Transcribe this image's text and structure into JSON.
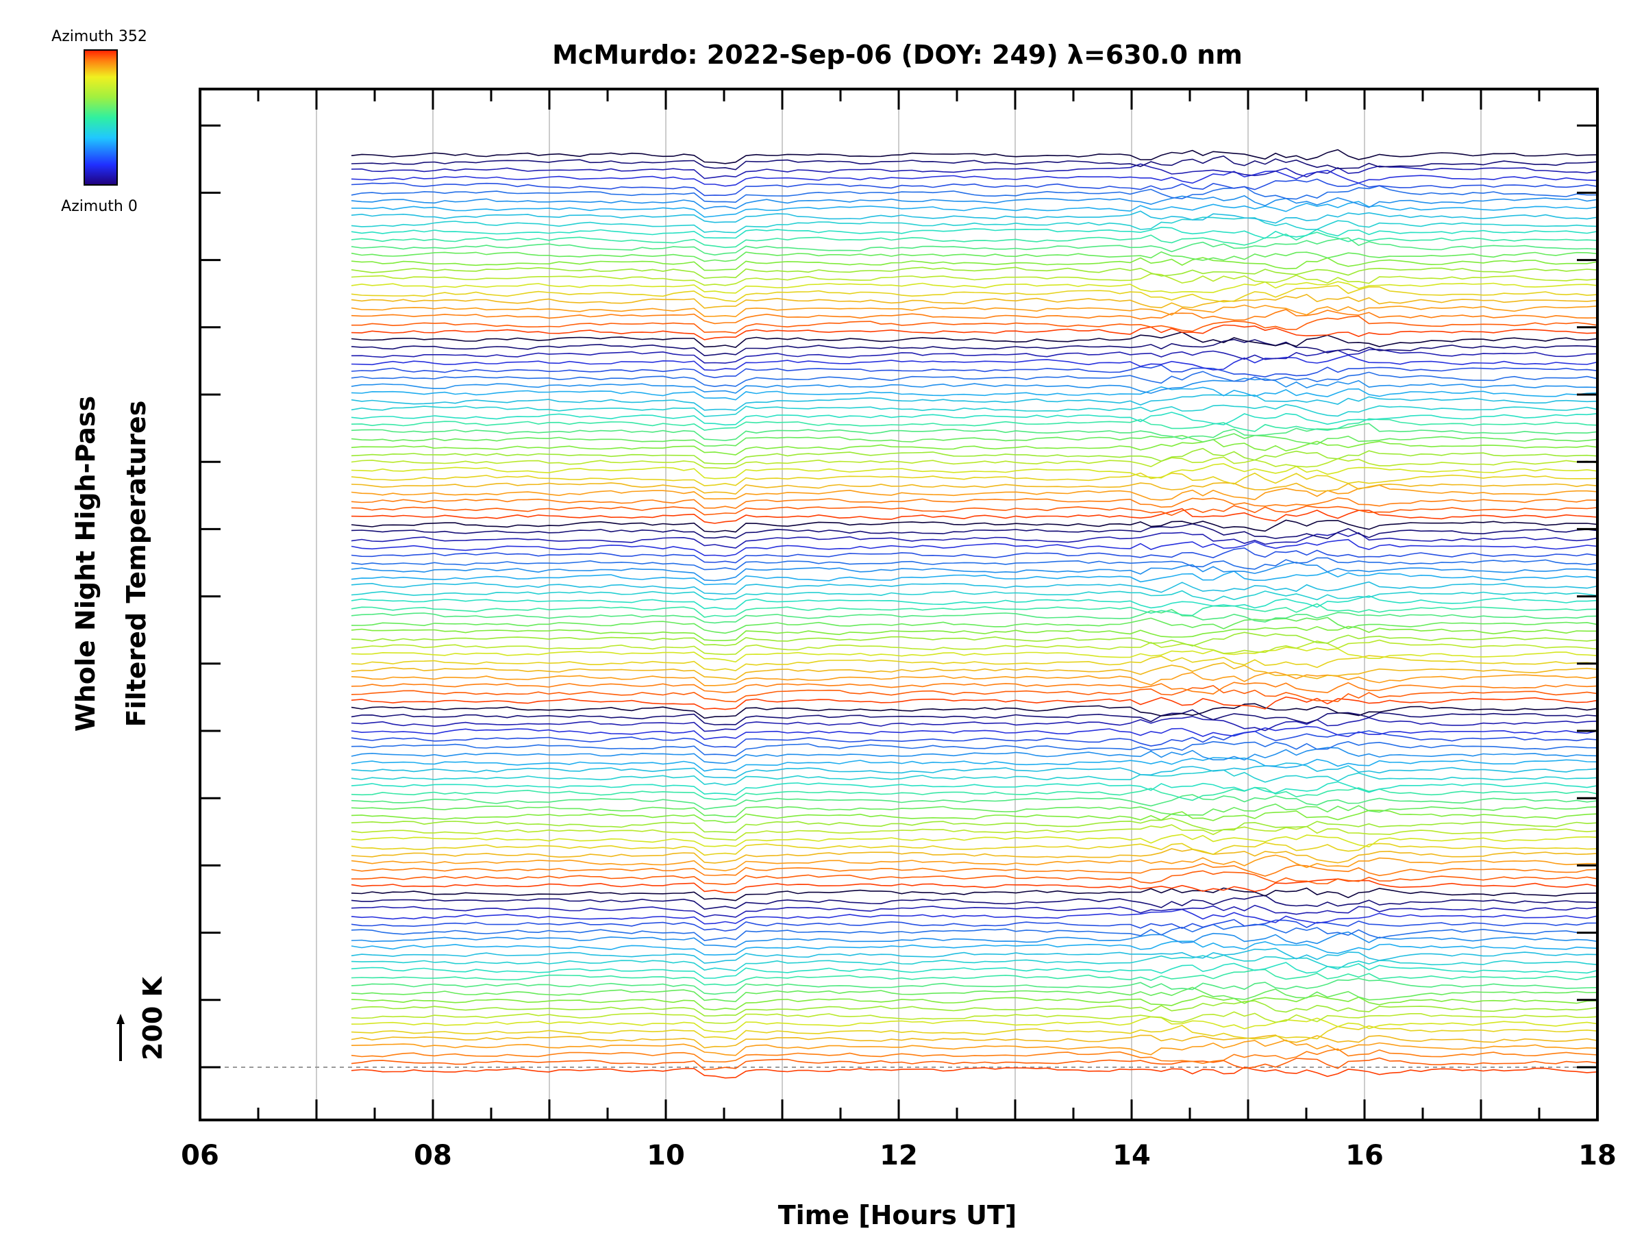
{
  "chart_data": {
    "type": "line",
    "title": "McMurdo: 2022-Sep-06 (DOY: 249) λ=630.0 nm",
    "xlabel": "Time [Hours UT]",
    "ylabel_line1": "Whole Night High-Pass",
    "ylabel_line2": "Filtered Temperatures",
    "scale_label": "200 K",
    "xlim": [
      6,
      18
    ],
    "x_ticks": [
      "06",
      "08",
      "10",
      "12",
      "14",
      "16",
      "18"
    ],
    "x_tick_values": [
      6,
      8,
      10,
      12,
      14,
      16,
      18
    ],
    "data_start_hour": 7.3,
    "data_end_hour": 18,
    "colorbar": {
      "top_label": "Azimuth 352",
      "bottom_label": "Azimuth 0",
      "azimuth_range": [
        0,
        352
      ],
      "colormap": "rainbow (dark blue → red)"
    },
    "series_description": "Stacked high-pass filtered temperature traces for many azimuth directions, colored by azimuth; each trace offset vertically",
    "colors": {
      "frame": "#000000",
      "grid": "#cccccc",
      "baseline": "#999999"
    }
  }
}
